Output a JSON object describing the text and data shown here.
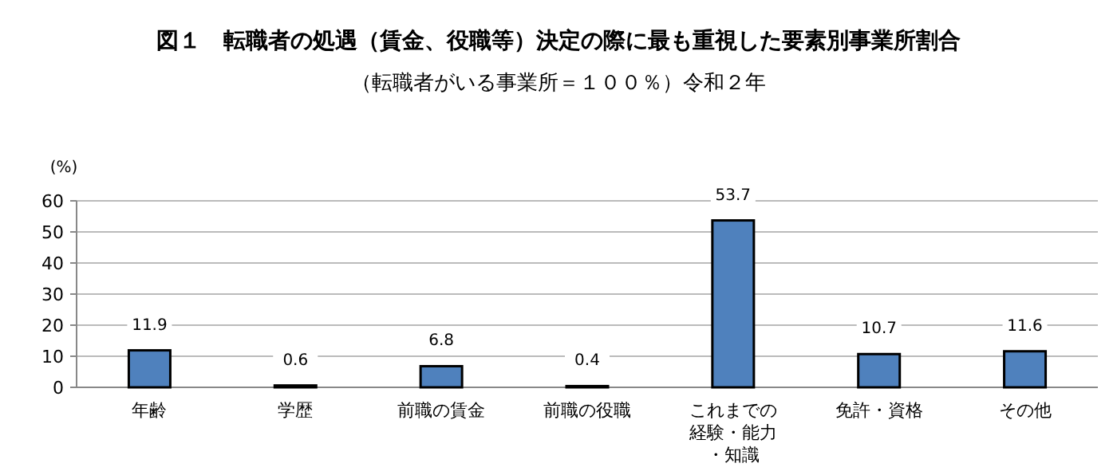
{
  "chart_data": {
    "type": "bar",
    "title": "図１　転職者の処遇（賃金、役職等）決定の際に最も重視した要素別事業所割合",
    "subtitle": "（転職者がいる事業所＝１００％）令和２年",
    "ylabel": "(%)",
    "categories": [
      "年齢",
      "学歴",
      "前職の賃金",
      "前職の役職",
      "これまでの経験・能力・知識",
      "免許・資格",
      "その他"
    ],
    "values": [
      11.9,
      0.6,
      6.8,
      0.4,
      53.7,
      10.7,
      11.6
    ],
    "color": "#4f81bd",
    "ylim": [
      0,
      60
    ],
    "yticks": [
      0,
      10,
      20,
      30,
      40,
      50,
      60
    ],
    "grid": "y",
    "data_labels": true
  }
}
